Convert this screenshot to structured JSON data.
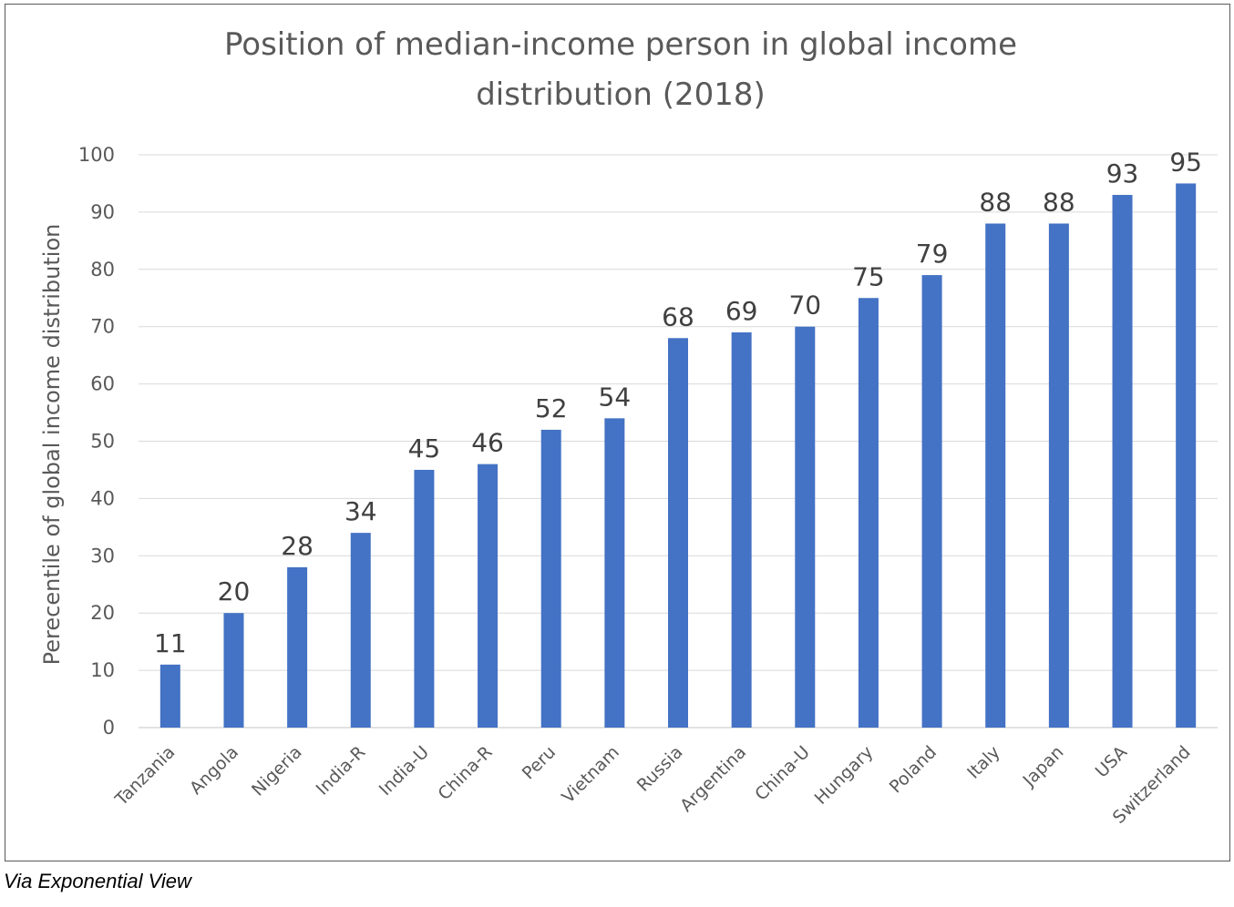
{
  "chart_data": {
    "type": "bar",
    "title": "Position of median-income person in global income distribution (2018)",
    "title_lines": [
      "Position of median-income person in global income",
      "distribution (2018)"
    ],
    "xlabel": "",
    "ylabel": "Perecentile of global income distribution",
    "ylim": [
      0,
      100
    ],
    "yticks": [
      0,
      10,
      20,
      30,
      40,
      50,
      60,
      70,
      80,
      90,
      100
    ],
    "grid": true,
    "bar_color": "#4472c4",
    "categories": [
      "Tanzania",
      "Angola",
      "Nigeria",
      "India-R",
      "India-U",
      "China-R",
      "Peru",
      "Vietnam",
      "Russia",
      "Argentina",
      "China-U",
      "Hungary",
      "Poland",
      "Italy",
      "Japan",
      "USA",
      "Switzerland"
    ],
    "values": [
      11,
      20,
      28,
      34,
      45,
      46,
      52,
      54,
      68,
      69,
      70,
      75,
      79,
      88,
      88,
      93,
      95
    ]
  },
  "caption": "Via Exponential View"
}
